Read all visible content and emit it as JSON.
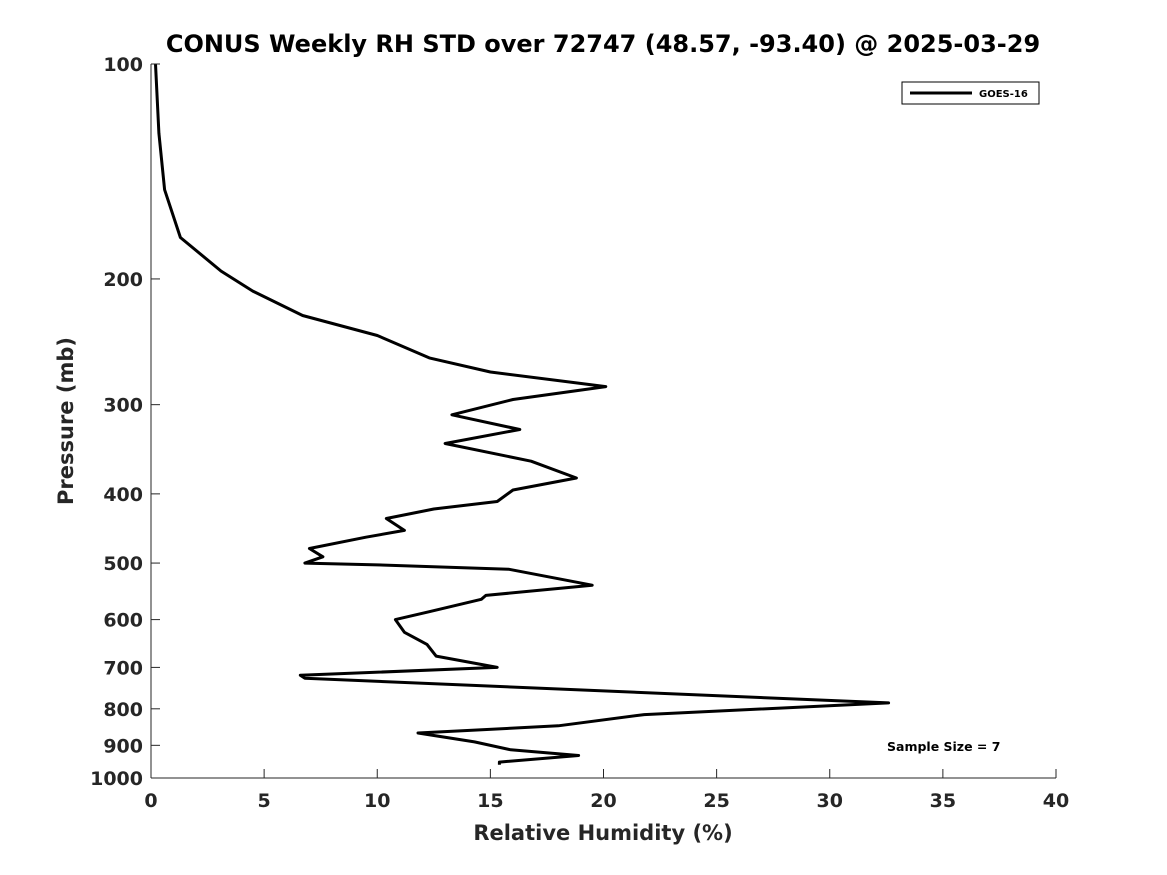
{
  "chart_data": {
    "type": "line",
    "title": "CONUS Weekly RH STD over 72747 (48.57, -93.40) @ 2025-03-29",
    "xlabel": "Relative Humidity (%)",
    "ylabel": "Pressure (mb)",
    "xlim": [
      0,
      40
    ],
    "ylim": [
      100,
      1000
    ],
    "yscale": "log",
    "y_reversed": true,
    "x_ticks": [
      0,
      5,
      10,
      15,
      20,
      25,
      30,
      35,
      40
    ],
    "y_ticks": [
      100,
      200,
      300,
      400,
      500,
      600,
      700,
      800,
      900,
      1000
    ],
    "grid": false,
    "legend_position": "top-right",
    "line_color": "#000000",
    "series": [
      {
        "name": "GOES-16",
        "x": [
          0.2,
          0.35,
          0.6,
          1.3,
          3.1,
          4.5,
          6.7,
          10.0,
          12.3,
          15.0,
          20.1,
          16.0,
          13.3,
          16.3,
          13.0,
          16.8,
          18.8,
          16.0,
          15.3,
          12.5,
          10.4,
          11.2,
          9.5,
          7.0,
          7.6,
          6.8,
          10.0,
          15.8,
          19.5,
          14.8,
          14.6,
          12.3,
          10.8,
          11.2,
          12.2,
          12.6,
          15.3,
          6.6,
          6.8,
          32.6,
          21.8,
          18.0,
          11.8,
          14.3,
          15.9,
          18.9,
          15.4,
          15.4
        ],
        "y": [
          100,
          125,
          150,
          175,
          195,
          208,
          225,
          240,
          258,
          270,
          283,
          295,
          310,
          325,
          340,
          360,
          380,
          395,
          410,
          420,
          433,
          450,
          460,
          477,
          490,
          500,
          503,
          510,
          537,
          555,
          562,
          585,
          600,
          625,
          650,
          675,
          700,
          718,
          725,
          785,
          815,
          845,
          865,
          890,
          913,
          930,
          950,
          958
        ]
      }
    ],
    "annotations": [
      "Sample Size = 7"
    ]
  }
}
